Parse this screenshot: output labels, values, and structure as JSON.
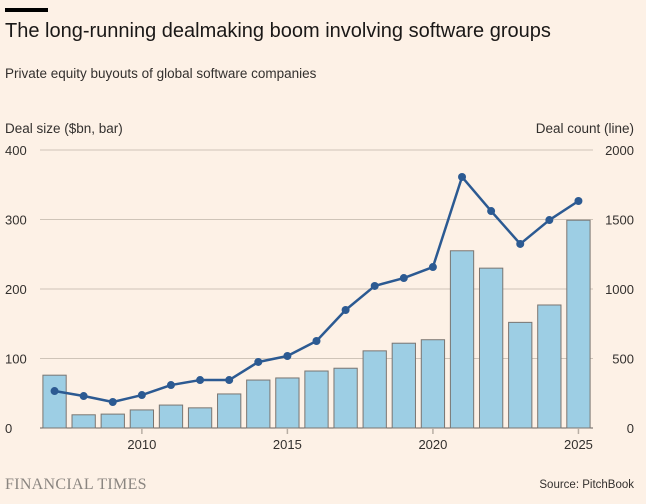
{
  "header": {
    "title": "The long-running dealmaking boom involving software groups",
    "subtitle": "Private equity buyouts of global software companies"
  },
  "footer": {
    "brand": "FINANCIAL TIMES",
    "source": "Source: PitchBook"
  },
  "colors": {
    "bar_fill": "#9dcee4",
    "bar_stroke": "#7a7571",
    "line": "#2c5a92",
    "grid": "#cfc4b8",
    "text": "#33302e"
  },
  "chart_data": {
    "type": "bar+line",
    "title": "The long-running dealmaking boom involving software groups",
    "subtitle": "Private equity buyouts of global software companies",
    "ylabel_left": "Deal size ($bn, bar)",
    "ylabel_right": "Deal count (line)",
    "ylim_left": [
      0,
      400
    ],
    "ylim_right": [
      0,
      2000
    ],
    "yticks_left": [
      "0",
      "100",
      "200",
      "300",
      "400"
    ],
    "yticks_right": [
      "0",
      "500",
      "1000",
      "1500",
      "2000"
    ],
    "xticks": [
      "2010",
      "2015",
      "2020",
      "2025"
    ],
    "grid": true,
    "x": [
      2007,
      2008,
      2009,
      2010,
      2011,
      2012,
      2013,
      2014,
      2015,
      2016,
      2017,
      2018,
      2019,
      2020,
      2021,
      2022,
      2023,
      2024,
      2025
    ],
    "series": [
      {
        "name": "Deal size ($bn)",
        "type": "bar",
        "axis": "left",
        "values": [
          76,
          19,
          20,
          26,
          33,
          29,
          49,
          69,
          72,
          82,
          86,
          111,
          122,
          127,
          255,
          230,
          152,
          177,
          299
        ]
      },
      {
        "name": "Deal count",
        "type": "line",
        "axis": "right",
        "values": [
          266,
          230,
          187,
          237,
          309,
          345,
          345,
          475,
          518,
          626,
          849,
          1022,
          1079,
          1158,
          1806,
          1561,
          1324,
          1496,
          1633
        ]
      }
    ]
  }
}
